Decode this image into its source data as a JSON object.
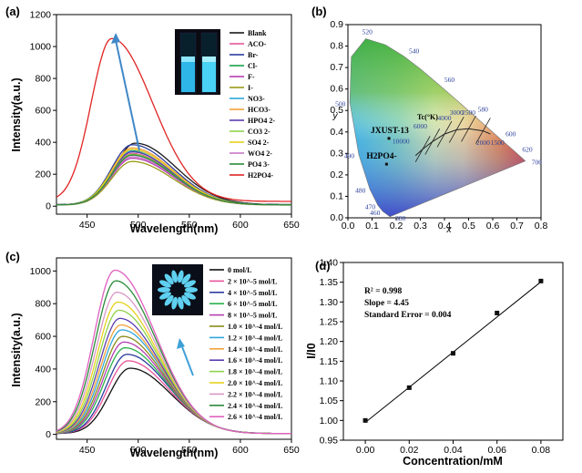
{
  "chart_data": [
    {
      "panel": "(a)",
      "type": "line",
      "xlabel": "Wavelength(nm)",
      "ylabel": "Intensity(a.u.)",
      "xlim": [
        420,
        650
      ],
      "ylim": [
        -50,
        1200
      ],
      "xticks": [
        450,
        500,
        550,
        600,
        650
      ],
      "yticks": [
        0,
        200,
        400,
        600,
        800,
        1000,
        1200
      ],
      "series": [
        {
          "name": "Blank",
          "color": "#1a1a1a",
          "peak_x": 497,
          "peak_y": 395,
          "baseline": 10
        },
        {
          "name": "ACO-",
          "color": "#e8559a",
          "peak_x": 494,
          "peak_y": 330,
          "baseline": 8
        },
        {
          "name": "Br-",
          "color": "#2c3c9e",
          "peak_x": 494,
          "peak_y": 385,
          "baseline": 9
        },
        {
          "name": "Cl-",
          "color": "#1aa04a",
          "peak_x": 493,
          "peak_y": 345,
          "baseline": 8
        },
        {
          "name": "F-",
          "color": "#b43fb0",
          "peak_x": 494,
          "peak_y": 300,
          "baseline": 8
        },
        {
          "name": "I-",
          "color": "#9a9a1a",
          "peak_x": 494,
          "peak_y": 280,
          "baseline": 7
        },
        {
          "name": "NO3-",
          "color": "#2ea7dc",
          "peak_x": 495,
          "peak_y": 350,
          "baseline": 8
        },
        {
          "name": "HCO3-",
          "color": "#f2a23a",
          "peak_x": 494,
          "peak_y": 365,
          "baseline": 8
        },
        {
          "name": "HPO4 2-",
          "color": "#5b3cb0",
          "peak_x": 494,
          "peak_y": 340,
          "baseline": 8
        },
        {
          "name": "CO3 2-",
          "color": "#8fd24a",
          "peak_x": 494,
          "peak_y": 325,
          "baseline": 8
        },
        {
          "name": "SO4 2-",
          "color": "#e6d21e",
          "peak_x": 494,
          "peak_y": 355,
          "baseline": 8
        },
        {
          "name": "WO4 2-",
          "color": "#c878c8",
          "peak_x": 494,
          "peak_y": 310,
          "baseline": 8
        },
        {
          "name": "PO4 3-",
          "color": "#2a8a3a",
          "peak_x": 494,
          "peak_y": 320,
          "baseline": 8
        },
        {
          "name": "H2PO4-",
          "color": "#e02424",
          "peak_x": 474,
          "peak_y": 1050,
          "baseline": 30
        }
      ]
    },
    {
      "panel": "(b)",
      "type": "scatter",
      "xlabel": "x",
      "ylabel": "y",
      "xlim": [
        0,
        0.8
      ],
      "ylim": [
        0,
        0.9
      ],
      "xticks": [
        "0.0",
        "0.1",
        "0.2",
        "0.3",
        "0.4",
        "0.5",
        "0.6",
        "0.7",
        "0.8"
      ],
      "yticks": [
        "0.0",
        "0.1",
        "0.2",
        "0.3",
        "0.4",
        "0.5",
        "0.6",
        "0.7",
        "0.8",
        "0.9"
      ],
      "wavelength_labels": [
        "380",
        "460",
        "470",
        "480",
        "490",
        "500",
        "520",
        "540",
        "560",
        "580",
        "600",
        "620",
        "700"
      ],
      "cct_label": "Tc(°K)",
      "cct_values": [
        "10000",
        "6000",
        "4000",
        "3000",
        "2500",
        "2000",
        "1500"
      ],
      "points": [
        {
          "name": "JXUST-13",
          "x": 0.17,
          "y": 0.37
        },
        {
          "name": "H2PO4-",
          "x": 0.16,
          "y": 0.25
        }
      ]
    },
    {
      "panel": "(c)",
      "type": "line",
      "xlabel": "Wavelength(nm)",
      "ylabel": "Intensity(a.u.)",
      "xlim": [
        420,
        650
      ],
      "ylim": [
        -30,
        1080
      ],
      "xticks": [
        450,
        500,
        550,
        600,
        650
      ],
      "yticks": [
        0,
        200,
        400,
        600,
        800,
        1000
      ],
      "series": [
        {
          "name": "0 mol/L",
          "color": "#111111",
          "peak_y": 405,
          "peak_x": 492
        },
        {
          "name": "2 × 10^-5 mol/L",
          "color": "#e8559a",
          "peak_y": 450,
          "peak_x": 490
        },
        {
          "name": "4 × 10^-5 mol/L",
          "color": "#2c3c9e",
          "peak_y": 490,
          "peak_x": 489
        },
        {
          "name": "6 × 10^-5 mol/L",
          "color": "#2ab04a",
          "peak_y": 530,
          "peak_x": 487
        },
        {
          "name": "8 × 10^-5 mol/L",
          "color": "#b43fb0",
          "peak_y": 565,
          "peak_x": 486
        },
        {
          "name": "1.0 × 10^-4 mol/L",
          "color": "#8a8a1a",
          "peak_y": 600,
          "peak_x": 485
        },
        {
          "name": "1.2 × 10^-4 mol/L",
          "color": "#2ea7dc",
          "peak_y": 640,
          "peak_x": 484
        },
        {
          "name": "1.4 × 10^-4 mol/L",
          "color": "#f2a23a",
          "peak_y": 670,
          "peak_x": 483
        },
        {
          "name": "1.6 × 10^-4 mol/L",
          "color": "#5b3cb0",
          "peak_y": 710,
          "peak_x": 482
        },
        {
          "name": "1.8 × 10^-4 mol/L",
          "color": "#8fd24a",
          "peak_y": 760,
          "peak_x": 481
        },
        {
          "name": "2.0 × 10^-4 mol/L",
          "color": "#e6d21e",
          "peak_y": 810,
          "peak_x": 480
        },
        {
          "name": "2.2 × 10^-4 mol/L",
          "color": "#d898c8",
          "peak_y": 870,
          "peak_x": 479
        },
        {
          "name": "2.4 × 10^-4 mol/L",
          "color": "#2a8a3a",
          "peak_y": 940,
          "peak_x": 478
        },
        {
          "name": "2.6 × 10^-4 mol/L",
          "color": "#e060c0",
          "peak_y": 1005,
          "peak_x": 477
        }
      ]
    },
    {
      "panel": "(d)",
      "type": "scatter",
      "xlabel": "Concentration/mM",
      "ylabel": "I/I0",
      "xlim": [
        -0.01,
        0.09
      ],
      "ylim": [
        0.95,
        1.4
      ],
      "xticks": [
        "0.00",
        "0.02",
        "0.04",
        "0.06",
        "0.08"
      ],
      "yticks": [
        "0.95",
        "1.00",
        "1.05",
        "1.10",
        "1.15",
        "1.20",
        "1.25",
        "1.30",
        "1.35",
        "1.40"
      ],
      "x": [
        0.0,
        0.02,
        0.04,
        0.06,
        0.08
      ],
      "y": [
        1.0,
        1.083,
        1.17,
        1.272,
        1.353
      ],
      "fit": {
        "slope": 4.45,
        "intercept": 0.995
      },
      "annotations": [
        "R² = 0.998",
        "Slope = 4.45",
        "Standard Error = 0.004"
      ]
    }
  ]
}
